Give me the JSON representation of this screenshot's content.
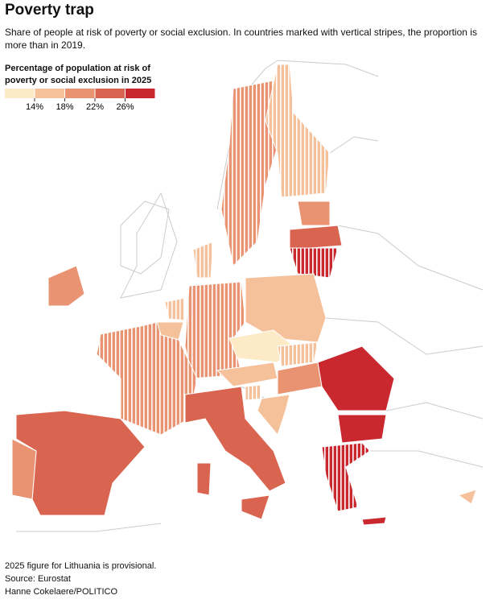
{
  "header": {
    "title": "Poverty trap",
    "subtitle": "Share of people at risk of poverty or social exclusion. In countries marked with vertical stripes, the proportion is more than in 2019."
  },
  "legend": {
    "title": "Percentage of population at risk of poverty or social exclusion in 2025",
    "colors": [
      "#fdebc8",
      "#f5c19b",
      "#ea9372",
      "#d96450",
      "#c9282f"
    ],
    "ticks": [
      {
        "value": 14,
        "label": "14%"
      },
      {
        "value": 18,
        "label": "18%"
      },
      {
        "value": 22,
        "label": "22%"
      },
      {
        "value": 26,
        "label": "26%"
      }
    ]
  },
  "footer": {
    "note": "2025 figure for Lithuania is provisional.",
    "source": "Source: Eurostat",
    "credit": "Hanne Cokelaere/POLITICO"
  }
}
